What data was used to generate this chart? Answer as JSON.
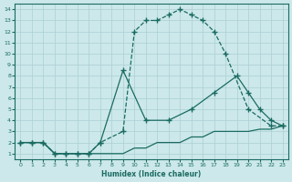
{
  "xlabel": "Humidex (Indice chaleur)",
  "bg_color": "#cce8ea",
  "line_color": "#1a6b62",
  "grid_color": "#aacfd4",
  "xlim": [
    -0.5,
    23.5
  ],
  "ylim": [
    0.5,
    14.5
  ],
  "xticks": [
    0,
    1,
    2,
    3,
    4,
    5,
    6,
    7,
    8,
    9,
    10,
    11,
    12,
    13,
    14,
    15,
    16,
    17,
    18,
    19,
    20,
    21,
    22,
    23
  ],
  "yticks": [
    1,
    2,
    3,
    4,
    5,
    6,
    7,
    8,
    9,
    10,
    11,
    12,
    13,
    14
  ],
  "line_top_x": [
    0,
    1,
    2,
    3,
    4,
    5,
    6,
    7,
    9,
    10,
    11,
    12,
    13,
    14,
    15,
    16,
    17,
    18,
    20,
    22,
    23
  ],
  "line_top_y": [
    2,
    2,
    2,
    1,
    1,
    1,
    1,
    2,
    3,
    12,
    13,
    13,
    13.5,
    14,
    13.5,
    13,
    12,
    10,
    5,
    3.5,
    3.5
  ],
  "line_mid_x": [
    0,
    1,
    2,
    3,
    4,
    5,
    6,
    7,
    9,
    11,
    13,
    15,
    17,
    19,
    20,
    21,
    22,
    23
  ],
  "line_mid_y": [
    2,
    2,
    2,
    1,
    1,
    1,
    1,
    2,
    8.5,
    4,
    4,
    5,
    6.5,
    8,
    6.5,
    5,
    4,
    3.5
  ],
  "line_bot_x": [
    0,
    1,
    2,
    3,
    4,
    5,
    6,
    7,
    8,
    9,
    10,
    11,
    12,
    13,
    14,
    15,
    16,
    17,
    18,
    19,
    20,
    21,
    22,
    23
  ],
  "line_bot_y": [
    2,
    2,
    2,
    1,
    1,
    1,
    1,
    1,
    1,
    1,
    1.5,
    1.5,
    2,
    2,
    2,
    2.5,
    2.5,
    3,
    3,
    3,
    3,
    3.2,
    3.2,
    3.5
  ]
}
